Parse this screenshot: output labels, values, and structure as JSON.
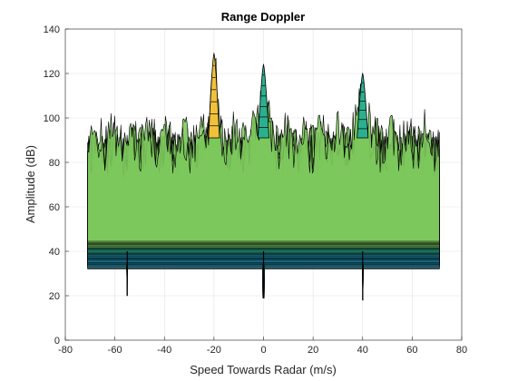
{
  "chart_data": {
    "type": "surface",
    "title": "Range Doppler",
    "xlabel": "Speed Towards Radar (m/s)",
    "ylabel": "Amplitude (dB)",
    "xlim": [
      -80,
      80
    ],
    "ylim": [
      0,
      140
    ],
    "xticks": [
      -80,
      -60,
      -40,
      -20,
      0,
      20,
      40,
      60,
      80
    ],
    "yticks": [
      0,
      20,
      40,
      60,
      80,
      100,
      120,
      140
    ],
    "grid": true,
    "legend": "none",
    "speed_range": [
      -71,
      71
    ],
    "noise_ceiling_db": 97,
    "noise_floor_db": 40,
    "minimum_dips": [
      {
        "x": -55,
        "y": 20
      },
      {
        "x": 0,
        "y": 19
      },
      {
        "x": 40,
        "y": 18
      }
    ],
    "peaks": [
      {
        "x": -20,
        "y": 129
      },
      {
        "x": 0,
        "y": 124
      },
      {
        "x": 40,
        "y": 120
      }
    ],
    "colormap": [
      "#27348b",
      "#1f8fb0",
      "#2bb08f",
      "#7cc85c",
      "#f2c13a"
    ]
  }
}
